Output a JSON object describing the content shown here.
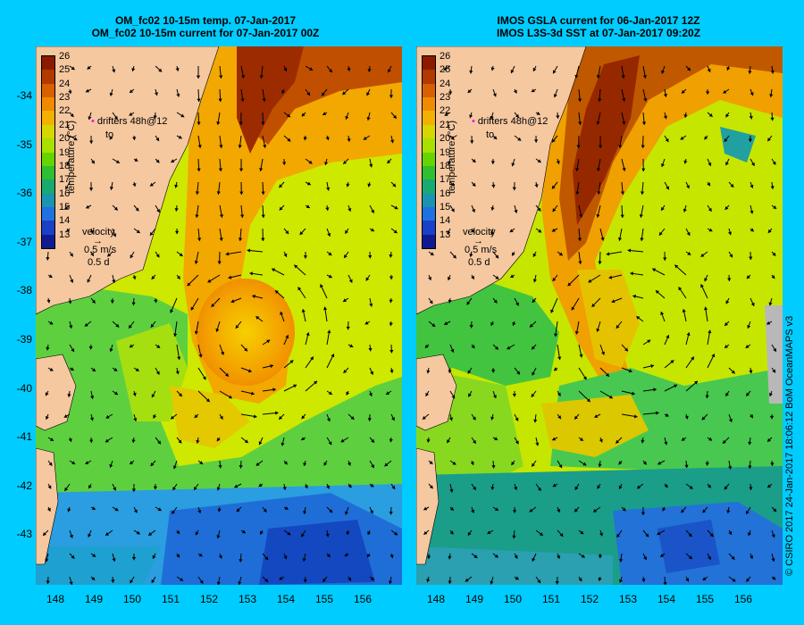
{
  "left": {
    "title_line1": "OM_fc02 10-15m temp. 07-Jan-2017",
    "title_line2": "OM_fc02 10-15m current for 07-Jan-2017 00Z"
  },
  "right": {
    "title_line1": "IMOS GSLA current for 06-Jan-2017 12Z",
    "title_line2": "IMOS L3S-3d SST at 07-Jan-2017 09:20Z"
  },
  "colorbar": {
    "label": "temperature (°C)",
    "ticks": [
      "26",
      "25",
      "24",
      "23",
      "22",
      "21",
      "20",
      "19",
      "18",
      "17",
      "16",
      "15",
      "14",
      "13"
    ],
    "colors": [
      "#8b1a00",
      "#b03a00",
      "#d86000",
      "#f08a00",
      "#f4b000",
      "#d6d600",
      "#a8e000",
      "#66d400",
      "#2ec030",
      "#18aa70",
      "#1a94b0",
      "#2070e0",
      "#1a40c8",
      "#101a90"
    ]
  },
  "legend": {
    "drifters": "drifters 48h@12",
    "to": "to",
    "velocity": "velocity",
    "speed": "0.5 m/s",
    "time": "0.5 d"
  },
  "axes": {
    "lat_labels": [
      "-34",
      "-35",
      "-36",
      "-37",
      "-38",
      "-39",
      "-40",
      "-41",
      "-42",
      "-43"
    ],
    "lon_labels": [
      "148",
      "149",
      "150",
      "151",
      "152",
      "153",
      "154",
      "155",
      "156"
    ]
  },
  "credit": "© CSIRO 2017   24-Jan-2017 18:06:12 BoM OceanMAPS v3",
  "colors": {
    "background": "#00ccff",
    "land": "#f5c8a0"
  }
}
